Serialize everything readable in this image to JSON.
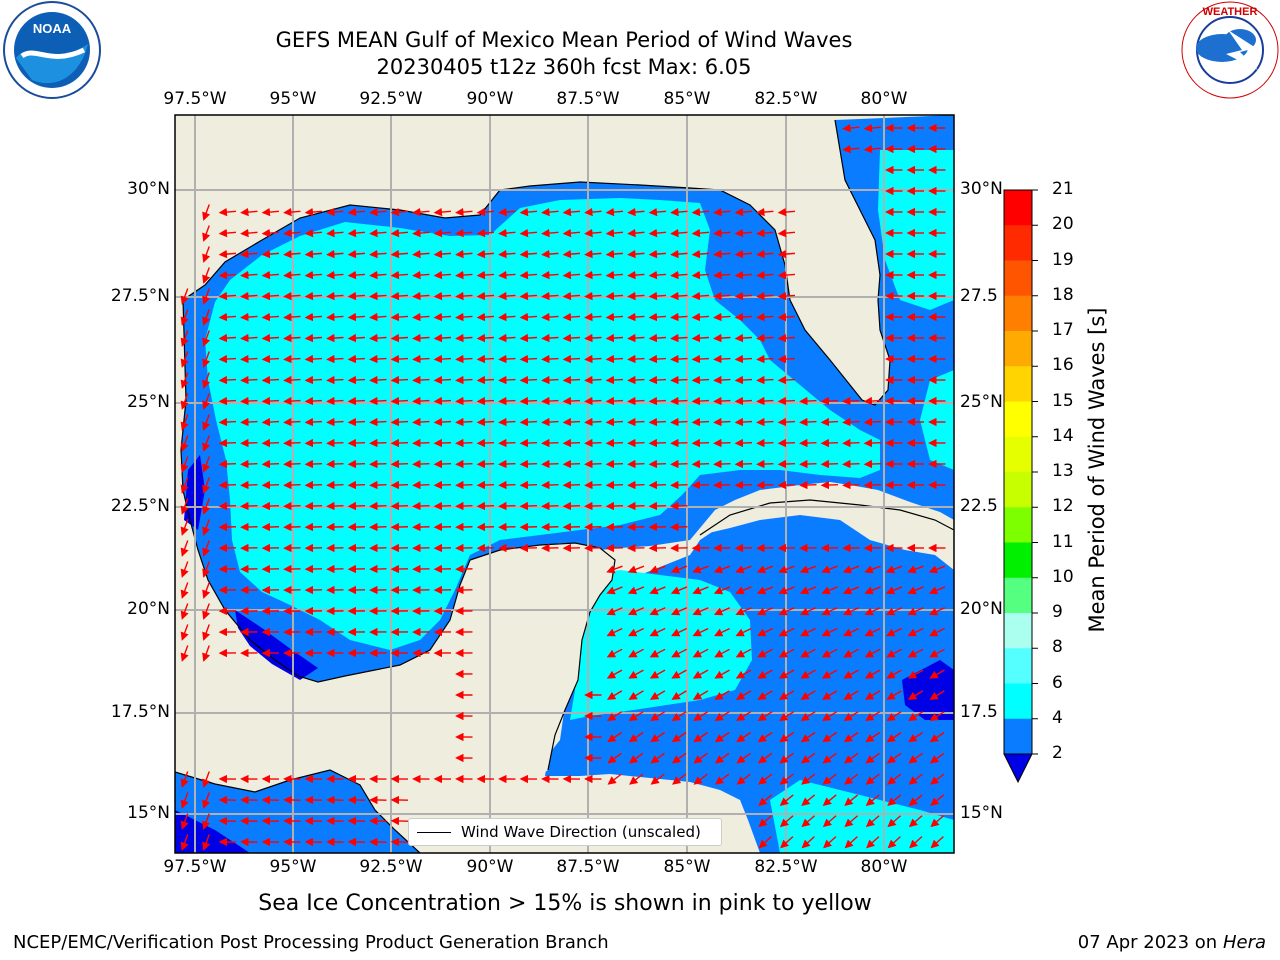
{
  "header": {
    "title_line1": "GEFS MEAN Gulf of Mexico Mean Period of Wind Waves",
    "title_line2": "20230405 t12z 360h fcst   Max: 6.05"
  },
  "logos": {
    "left": "NOAA",
    "right": "NATIONAL WEATHER SERVICE"
  },
  "map": {
    "lon_ticks": [
      "97.5°W",
      "95°W",
      "92.5°W",
      "90°W",
      "87.5°W",
      "85°W",
      "82.5°W",
      "80°W"
    ],
    "lat_ticks_left": [
      "30°N",
      "27.5°N",
      "25°N",
      "22.5°N",
      "20°N",
      "17.5°N",
      "15°N"
    ],
    "lat_ticks_right": [
      "30°N",
      "27.5",
      "25°N",
      "22.5",
      "20°N",
      "17.5",
      "15°N"
    ],
    "legend_label": "Wind Wave Direction (unscaled)",
    "colors": {
      "land": "#efedde",
      "period_2_4": "#0a7cff",
      "period_4_6": "#00ffff",
      "period_lt2": "#0000e6",
      "arrow": "#ff0000"
    }
  },
  "colorbar": {
    "label": "Mean Period of Wind Waves [s]",
    "ticks": [
      "21",
      "20",
      "19",
      "18",
      "17",
      "16",
      "15",
      "14",
      "13",
      "12",
      "11",
      "10",
      "9",
      "8",
      "6",
      "4",
      "2"
    ],
    "colors": [
      "#ff0000",
      "#ff2a00",
      "#ff5500",
      "#ff8000",
      "#ffaa00",
      "#ffd400",
      "#ffff00",
      "#e6ff00",
      "#c8ff00",
      "#7dff00",
      "#00f000",
      "#55ff80",
      "#aaffee",
      "#55ffff",
      "#00ffff",
      "#0a7cff"
    ]
  },
  "caption": "Sea Ice Concentration > 15% is shown in pink to yellow",
  "footer": {
    "left": "NCEP/EMC/Verification Post Processing Product Generation Branch",
    "right_date": "07 Apr 2023 on ",
    "right_host": "Hera"
  }
}
